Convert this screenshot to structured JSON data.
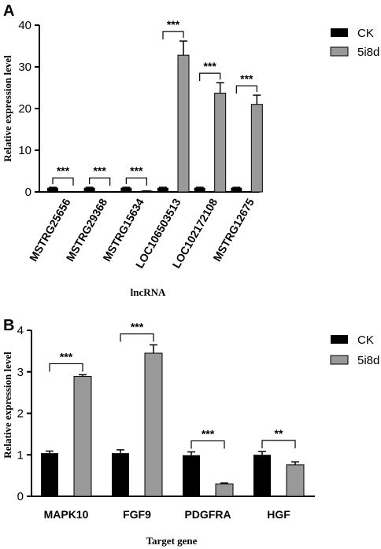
{
  "chart_data": [
    {
      "panel": "A",
      "type": "bar",
      "xlabel": "lncRNA",
      "ylabel": "Relative expression level",
      "ylim": [
        0,
        40
      ],
      "yticks": [
        "0",
        "10",
        "20",
        "30",
        "40"
      ],
      "categories": [
        "MSTRG25656",
        "MSTRG29368",
        "MSTRG15634",
        "LOC106503513",
        "LOC102172108",
        "MSTRG12675"
      ],
      "series": [
        {
          "name": "CK",
          "color": "#000000",
          "values": [
            1,
            1,
            1,
            1,
            1,
            1
          ],
          "errors": [
            0.1,
            0.1,
            0.1,
            0.1,
            0.1,
            0.1
          ]
        },
        {
          "name": "5i8d",
          "color": "#999999",
          "values": [
            0.05,
            0.05,
            0.2,
            32.8,
            23.7,
            21.0
          ],
          "errors": [
            0,
            0,
            0.05,
            3.4,
            2.5,
            2.2
          ]
        }
      ],
      "significance": [
        "***",
        "***",
        "***",
        "***",
        "***",
        "***"
      ],
      "legend_position": "top-right"
    },
    {
      "panel": "B",
      "type": "bar",
      "xlabel": "Target gene",
      "ylabel": "Relative expression level",
      "ylim": [
        0,
        4
      ],
      "yticks": [
        "0",
        "1",
        "2",
        "3",
        "4"
      ],
      "categories": [
        "MAPK10",
        "FGF9",
        "PDGFRA",
        "HGF"
      ],
      "series": [
        {
          "name": "CK",
          "color": "#000000",
          "values": [
            1.04,
            1.04,
            0.99,
            1.0
          ],
          "errors": [
            0.05,
            0.08,
            0.08,
            0.08
          ]
        },
        {
          "name": "5i8d",
          "color": "#999999",
          "values": [
            2.89,
            3.45,
            0.3,
            0.76
          ],
          "errors": [
            0.04,
            0.2,
            0.02,
            0.07
          ]
        }
      ],
      "significance": [
        "***",
        "***",
        "***",
        "**"
      ],
      "legend_position": "top-right"
    }
  ]
}
